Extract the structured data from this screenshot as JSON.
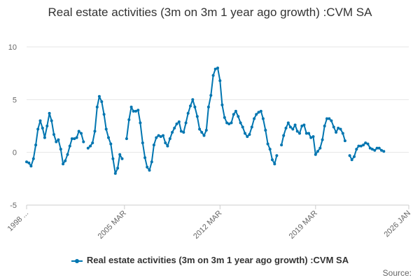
{
  "chart_data": {
    "type": "line",
    "title": "Real estate activities (3m on 3m 1 year ago growth) :CVM SA",
    "xlabel": "",
    "ylabel": "",
    "ylim": [
      -5,
      10
    ],
    "yticks": [
      -5,
      0,
      5,
      10
    ],
    "xlim": [
      1998.0,
      2026.0
    ],
    "x_tick_labels": [
      {
        "x": 1998.0,
        "label": "1998 ..."
      },
      {
        "x": 2005.17,
        "label": "2005 MAR"
      },
      {
        "x": 2012.17,
        "label": "2012 MAR"
      },
      {
        "x": 2019.17,
        "label": "2019 MAR"
      },
      {
        "x": 2026.0,
        "label": "2026 JAN"
      }
    ],
    "grid": true,
    "legend_position": "bottom",
    "series": [
      {
        "name": "Real estate activities (3m on 3m 1 year ago growth) :CVM SA",
        "color": "#0075b0",
        "points": [
          [
            1998.0,
            -0.9
          ],
          [
            1998.17,
            -1.0
          ],
          [
            1998.33,
            -1.3
          ],
          [
            1998.5,
            -0.6
          ],
          [
            1998.67,
            0.7
          ],
          [
            1998.83,
            2.2
          ],
          [
            1999.0,
            3.0
          ],
          [
            1999.17,
            2.3
          ],
          [
            1999.33,
            1.4
          ],
          [
            1999.5,
            2.5
          ],
          [
            1999.67,
            3.7
          ],
          [
            1999.83,
            3.0
          ],
          [
            2000.0,
            1.7
          ],
          [
            2000.17,
            1.0
          ],
          [
            2000.33,
            1.2
          ],
          [
            2000.5,
            0.3
          ],
          [
            2000.67,
            -1.1
          ],
          [
            2000.83,
            -0.8
          ],
          [
            2001.0,
            -0.2
          ],
          [
            2001.17,
            0.6
          ],
          [
            2001.33,
            1.3
          ],
          [
            2001.5,
            1.3
          ],
          [
            2001.67,
            1.4
          ],
          [
            2001.83,
            2.0
          ],
          [
            2002.0,
            1.8
          ],
          [
            2002.17,
            1.0
          ],
          [
            2002.33,
            null
          ],
          [
            2002.5,
            0.4
          ],
          [
            2002.67,
            0.6
          ],
          [
            2002.83,
            0.9
          ],
          [
            2003.0,
            2.0
          ],
          [
            2003.17,
            4.3
          ],
          [
            2003.33,
            5.3
          ],
          [
            2003.5,
            4.8
          ],
          [
            2003.67,
            3.6
          ],
          [
            2003.83,
            2.2
          ],
          [
            2004.0,
            1.4
          ],
          [
            2004.17,
            0.8
          ],
          [
            2004.33,
            -0.6
          ],
          [
            2004.5,
            -2.0
          ],
          [
            2004.67,
            -1.5
          ],
          [
            2004.83,
            -0.2
          ],
          [
            2005.0,
            -0.6
          ],
          [
            2005.17,
            null
          ],
          [
            2005.33,
            1.3
          ],
          [
            2005.5,
            3.1
          ],
          [
            2005.67,
            4.3
          ],
          [
            2005.83,
            3.9
          ],
          [
            2006.0,
            3.9
          ],
          [
            2006.17,
            4.0
          ],
          [
            2006.33,
            2.8
          ],
          [
            2006.5,
            0.9
          ],
          [
            2006.67,
            -0.5
          ],
          [
            2006.83,
            -1.4
          ],
          [
            2007.0,
            -1.7
          ],
          [
            2007.17,
            -0.9
          ],
          [
            2007.33,
            0.7
          ],
          [
            2007.5,
            1.4
          ],
          [
            2007.67,
            1.6
          ],
          [
            2007.83,
            1.5
          ],
          [
            2008.0,
            1.6
          ],
          [
            2008.17,
            0.9
          ],
          [
            2008.33,
            0.6
          ],
          [
            2008.5,
            1.3
          ],
          [
            2008.67,
            1.9
          ],
          [
            2008.83,
            2.3
          ],
          [
            2009.0,
            2.7
          ],
          [
            2009.17,
            2.9
          ],
          [
            2009.33,
            2.0
          ],
          [
            2009.5,
            1.9
          ],
          [
            2009.67,
            2.8
          ],
          [
            2009.83,
            3.7
          ],
          [
            2010.0,
            4.4
          ],
          [
            2010.17,
            5.0
          ],
          [
            2010.33,
            4.3
          ],
          [
            2010.5,
            3.4
          ],
          [
            2010.67,
            2.2
          ],
          [
            2010.83,
            1.9
          ],
          [
            2011.0,
            1.6
          ],
          [
            2011.17,
            2.1
          ],
          [
            2011.33,
            4.3
          ],
          [
            2011.5,
            5.4
          ],
          [
            2011.67,
            7.3
          ],
          [
            2011.83,
            7.9
          ],
          [
            2012.0,
            8.0
          ],
          [
            2012.17,
            6.8
          ],
          [
            2012.33,
            4.5
          ],
          [
            2012.5,
            3.3
          ],
          [
            2012.67,
            2.8
          ],
          [
            2012.83,
            2.7
          ],
          [
            2013.0,
            2.8
          ],
          [
            2013.17,
            3.6
          ],
          [
            2013.33,
            3.9
          ],
          [
            2013.5,
            3.4
          ],
          [
            2013.67,
            2.8
          ],
          [
            2013.83,
            2.4
          ],
          [
            2014.0,
            1.8
          ],
          [
            2014.17,
            1.5
          ],
          [
            2014.33,
            1.7
          ],
          [
            2014.5,
            2.4
          ],
          [
            2014.67,
            3.2
          ],
          [
            2014.83,
            3.6
          ],
          [
            2015.0,
            3.8
          ],
          [
            2015.17,
            3.9
          ],
          [
            2015.33,
            3.2
          ],
          [
            2015.5,
            2.1
          ],
          [
            2015.67,
            0.8
          ],
          [
            2015.83,
            0.3
          ],
          [
            2016.0,
            -0.7
          ],
          [
            2016.17,
            -1.1
          ],
          [
            2016.33,
            -0.3
          ],
          [
            2016.5,
            null
          ],
          [
            2016.67,
            0.7
          ],
          [
            2016.83,
            1.6
          ],
          [
            2017.0,
            2.3
          ],
          [
            2017.17,
            2.8
          ],
          [
            2017.33,
            2.4
          ],
          [
            2017.5,
            2.2
          ],
          [
            2017.67,
            2.6
          ],
          [
            2017.83,
            2.0
          ],
          [
            2018.0,
            1.8
          ],
          [
            2018.17,
            2.5
          ],
          [
            2018.33,
            2.6
          ],
          [
            2018.5,
            1.8
          ],
          [
            2018.67,
            1.8
          ],
          [
            2018.83,
            1.4
          ],
          [
            2019.0,
            1.5
          ],
          [
            2019.17,
            -0.2
          ],
          [
            2019.33,
            0.1
          ],
          [
            2019.5,
            0.4
          ],
          [
            2019.67,
            1.2
          ],
          [
            2019.83,
            2.5
          ],
          [
            2020.0,
            3.2
          ],
          [
            2020.17,
            3.2
          ],
          [
            2020.33,
            3.0
          ],
          [
            2020.5,
            2.4
          ],
          [
            2020.67,
            1.9
          ],
          [
            2020.83,
            2.3
          ],
          [
            2021.0,
            2.2
          ],
          [
            2021.17,
            1.8
          ],
          [
            2021.33,
            1.1
          ],
          [
            2021.5,
            null
          ],
          [
            2021.67,
            -0.3
          ],
          [
            2021.83,
            -0.7
          ],
          [
            2022.0,
            -0.4
          ],
          [
            2022.17,
            0.3
          ],
          [
            2022.33,
            0.6
          ],
          [
            2022.5,
            0.6
          ],
          [
            2022.67,
            0.7
          ],
          [
            2022.83,
            0.9
          ],
          [
            2023.0,
            0.8
          ],
          [
            2023.17,
            0.4
          ],
          [
            2023.33,
            0.3
          ],
          [
            2023.5,
            0.2
          ],
          [
            2023.67,
            0.4
          ],
          [
            2023.83,
            0.4
          ],
          [
            2024.0,
            0.2
          ],
          [
            2024.17,
            0.1
          ]
        ]
      }
    ]
  },
  "legend": {
    "label": "Real estate activities (3m on 3m 1 year ago growth) :CVM SA"
  },
  "footer": {
    "source_label": "Source:"
  }
}
